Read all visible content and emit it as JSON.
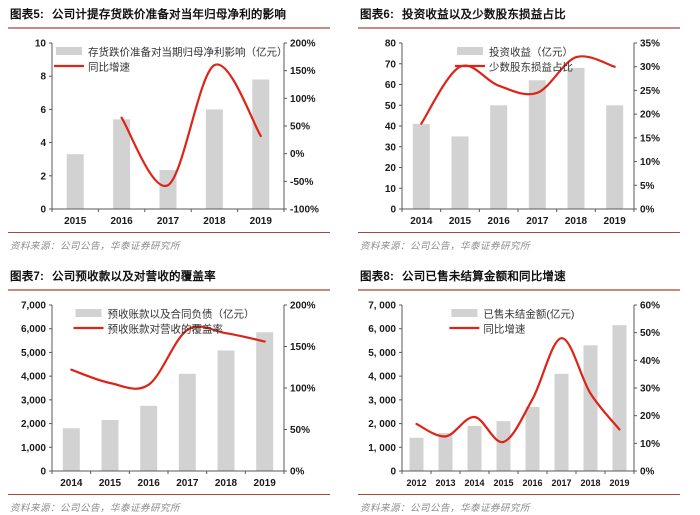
{
  "colors": {
    "bar": "#d2d2d2",
    "line": "#dd2418",
    "axis": "#595959",
    "tick_text": "#1a1a1a",
    "title_underline": "#c9897c",
    "separator": "#a04a3b",
    "source_text": "#8c8c8c"
  },
  "chart_data": [
    {
      "id": "figure-5",
      "type": "bar+line",
      "title_prefix": "图表5:",
      "title": "公司计提存货跌价准备对当年归母净利的影响",
      "source": "资料来源：公司公告，华泰证券研究所",
      "categories": [
        "2015",
        "2016",
        "2017",
        "2018",
        "2019"
      ],
      "series": [
        {
          "name": "存货跌价准备对当期归母净利影响（亿元）",
          "type": "bar",
          "axis": "left",
          "values": [
            3.3,
            5.4,
            2.35,
            6.0,
            7.8
          ]
        },
        {
          "name": "同比增速",
          "type": "line",
          "axis": "right",
          "values": [
            null,
            65,
            -57,
            160,
            32
          ]
        }
      ],
      "left_axis": {
        "min": 0,
        "max": 10,
        "ticks": [
          0,
          2,
          4,
          6,
          8,
          10
        ],
        "labels": [
          "0",
          "2",
          "4",
          "6",
          "8",
          "10"
        ]
      },
      "right_axis": {
        "min": -100,
        "max": 200,
        "ticks": [
          -100,
          -50,
          0,
          50,
          100,
          150,
          200
        ],
        "labels": [
          "-100%",
          "-50%",
          "0%",
          "50%",
          "100%",
          "150%",
          "200%"
        ]
      },
      "grid": false,
      "legend_position": "top-center"
    },
    {
      "id": "figure-6",
      "type": "bar+line",
      "title_prefix": "图表6:",
      "title": "投资收益以及少数股东损益占比",
      "source": "资料来源：公司公告，华泰证券研究所",
      "categories": [
        "2014",
        "2015",
        "2016",
        "2017",
        "2018",
        "2019"
      ],
      "series": [
        {
          "name": "投资收益（亿元）",
          "type": "bar",
          "axis": "left",
          "values": [
            41,
            35,
            50,
            62,
            68,
            50
          ]
        },
        {
          "name": "少数股东损益占比",
          "type": "line",
          "axis": "right",
          "values": [
            18,
            30,
            26,
            24.5,
            32,
            30
          ]
        }
      ],
      "left_axis": {
        "min": 0,
        "max": 80,
        "ticks": [
          0,
          10,
          20,
          30,
          40,
          50,
          60,
          70,
          80
        ],
        "labels": [
          "0",
          "10",
          "20",
          "30",
          "40",
          "50",
          "60",
          "70",
          "80"
        ]
      },
      "right_axis": {
        "min": 0,
        "max": 35,
        "ticks": [
          0,
          5,
          10,
          15,
          20,
          25,
          30,
          35
        ],
        "labels": [
          "0%",
          "5%",
          "10%",
          "15%",
          "20%",
          "25%",
          "30%",
          "35%"
        ]
      },
      "grid": false,
      "legend_position": "top-center"
    },
    {
      "id": "figure-7",
      "type": "bar+line",
      "title_prefix": "图表7:",
      "title": "公司预收款以及对营收的覆盖率",
      "source": "资料来源：公司公告，华泰证券研究所",
      "categories": [
        "2014",
        "2015",
        "2016",
        "2017",
        "2018",
        "2019"
      ],
      "series": [
        {
          "name": "预收账款以及合同负债（亿元）",
          "type": "bar",
          "axis": "left",
          "values": [
            1800,
            2150,
            2750,
            4100,
            5080,
            5850
          ]
        },
        {
          "name": "预收账款对营收的覆盖率",
          "type": "line",
          "axis": "right",
          "values": [
            122,
            106,
            104,
            170,
            166,
            156
          ]
        }
      ],
      "left_axis": {
        "min": 0,
        "max": 7000,
        "ticks": [
          0,
          1000,
          2000,
          3000,
          4000,
          5000,
          6000,
          7000
        ],
        "labels": [
          "0",
          "1,000",
          "2,000",
          "3,000",
          "4,000",
          "5,000",
          "6,000",
          "7,000"
        ]
      },
      "right_axis": {
        "min": 0,
        "max": 200,
        "ticks": [
          0,
          50,
          100,
          150,
          200
        ],
        "labels": [
          "0%",
          "50%",
          "100%",
          "150%",
          "200%"
        ]
      },
      "grid": false,
      "legend_position": "top-center"
    },
    {
      "id": "figure-8",
      "type": "bar+line",
      "title_prefix": "图表8:",
      "title": "公司已售未结算金额和同比增速",
      "source": "资料来源：公司公告，华泰证券研究所",
      "categories": [
        "2012",
        "2013",
        "2014",
        "2015",
        "2016",
        "2017",
        "2018",
        "2019"
      ],
      "series": [
        {
          "name": "已售未结金额(亿元)",
          "type": "bar",
          "axis": "left",
          "values": [
            1400,
            1600,
            1900,
            2100,
            2700,
            4100,
            5300,
            6150
          ]
        },
        {
          "name": "同比增速",
          "type": "line",
          "axis": "right",
          "values": [
            17,
            12.5,
            19.5,
            10.5,
            26,
            48,
            28,
            15
          ]
        }
      ],
      "left_axis": {
        "min": 0,
        "max": 7000,
        "ticks": [
          0,
          1000,
          2000,
          3000,
          4000,
          5000,
          6000,
          7000
        ],
        "labels": [
          "0",
          "1, 000",
          "2, 000",
          "3, 000",
          "4, 000",
          "5, 000",
          "6, 000",
          "7, 000"
        ]
      },
      "right_axis": {
        "min": 0,
        "max": 60,
        "ticks": [
          0,
          10,
          20,
          30,
          40,
          50,
          60
        ],
        "labels": [
          "0%",
          "10%",
          "20%",
          "30%",
          "40%",
          "50%",
          "60%"
        ]
      },
      "grid": false,
      "legend_position": "top-center"
    }
  ]
}
